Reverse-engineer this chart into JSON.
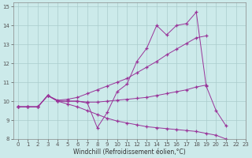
{
  "xlabel": "Windchill (Refroidissement éolien,°C)",
  "xlim": [
    -0.5,
    23
  ],
  "ylim": [
    8,
    15.2
  ],
  "yticks": [
    8,
    9,
    10,
    11,
    12,
    13,
    14,
    15
  ],
  "xticks": [
    0,
    1,
    2,
    3,
    4,
    5,
    6,
    7,
    8,
    9,
    10,
    11,
    12,
    13,
    14,
    15,
    16,
    17,
    18,
    19,
    20,
    21,
    22,
    23
  ],
  "line1_x": [
    0,
    1,
    2,
    3,
    4,
    5,
    6,
    7,
    8,
    9,
    10,
    11,
    12,
    13,
    14,
    15,
    16,
    17,
    18,
    19,
    20,
    21
  ],
  "line1_y": [
    9.7,
    9.7,
    9.7,
    10.3,
    10.0,
    10.0,
    10.0,
    9.9,
    8.6,
    9.4,
    10.5,
    10.9,
    12.1,
    12.8,
    14.0,
    13.5,
    14.0,
    14.1,
    14.7,
    10.8,
    9.5,
    8.7
  ],
  "line2_x": [
    0,
    1,
    2,
    3,
    4,
    5,
    6,
    7,
    8,
    9,
    10,
    11,
    12,
    13,
    14,
    15,
    16,
    17,
    18,
    19
  ],
  "line2_y": [
    9.7,
    9.7,
    9.7,
    10.3,
    10.05,
    10.1,
    10.2,
    10.4,
    10.6,
    10.8,
    11.0,
    11.2,
    11.5,
    11.8,
    12.1,
    12.45,
    12.75,
    13.05,
    13.35,
    13.45
  ],
  "line3_x": [
    0,
    1,
    2,
    3,
    4,
    5,
    6,
    7,
    8,
    9,
    10,
    11,
    12,
    13,
    14,
    15,
    16,
    17,
    18,
    19
  ],
  "line3_y": [
    9.7,
    9.7,
    9.7,
    10.3,
    10.0,
    10.0,
    10.0,
    9.95,
    9.95,
    10.0,
    10.05,
    10.1,
    10.15,
    10.2,
    10.3,
    10.4,
    10.5,
    10.6,
    10.75,
    10.85
  ],
  "line4_x": [
    0,
    1,
    2,
    3,
    4,
    5,
    6,
    7,
    8,
    9,
    10,
    11,
    12,
    13,
    14,
    15,
    16,
    17,
    18,
    19,
    20,
    21,
    22,
    23
  ],
  "line4_y": [
    9.7,
    9.7,
    9.7,
    10.3,
    10.0,
    9.85,
    9.7,
    9.5,
    9.3,
    9.1,
    8.95,
    8.85,
    8.75,
    8.65,
    8.6,
    8.55,
    8.5,
    8.45,
    8.4,
    8.3,
    8.2,
    8.0,
    7.85,
    7.75
  ],
  "line_color": "#993399",
  "bg_color": "#cceaea",
  "grid_color": "#aacccc"
}
